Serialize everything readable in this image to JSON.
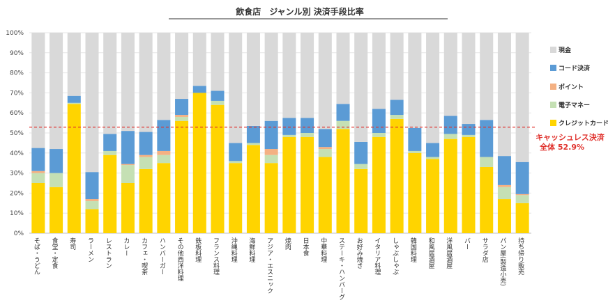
{
  "chart_data": {
    "type": "bar",
    "stacked": true,
    "title": "飲食店　ジャンル別 決済手段比率",
    "xlabel": "",
    "ylabel": "",
    "ylim": [
      0,
      100
    ],
    "yticks": [
      "0%",
      "10%",
      "20%",
      "30%",
      "40%",
      "50%",
      "60%",
      "70%",
      "80%",
      "90%",
      "100%"
    ],
    "legend_position": "right",
    "categories": [
      "そば・うどん",
      "食堂・定食",
      "寿司",
      "ラーメン",
      "レストラン",
      "カレー",
      "カフェ・喫茶",
      "ハンバーガー",
      "その他西洋料理",
      "鉄板料理",
      "フランス料理",
      "沖縄料理",
      "海鮮料理",
      "アジア・エスニック",
      "焼肉",
      "日本食",
      "中華料理",
      "ステーキ・ハンバーグ",
      "お好み焼き",
      "イタリア料理",
      "しゃぶしゃぶ",
      "韓国料理",
      "和風居酒屋",
      "洋風居酒屋",
      "バー",
      "サラダ店",
      "パン屋(製造小売)",
      "持ち帰り販売"
    ],
    "series": [
      {
        "name": "クレジットカード",
        "color": "#ffd400",
        "values": [
          25,
          23,
          64.5,
          12,
          39,
          25,
          32,
          35,
          56,
          70,
          64,
          35,
          44,
          35,
          48,
          48,
          38,
          52,
          32,
          48,
          57,
          40,
          37,
          47,
          48,
          33,
          17,
          15
        ]
      },
      {
        "name": "電子マネー",
        "color": "#c5e0b4",
        "values": [
          5,
          7,
          0.5,
          4,
          2,
          9,
          6,
          4,
          2,
          0,
          2,
          1,
          1,
          4,
          1,
          2,
          4,
          4,
          2.5,
          2,
          2,
          1,
          1,
          2.5,
          1,
          5,
          6,
          4
        ]
      },
      {
        "name": "ポイント",
        "color": "#f4b183",
        "values": [
          1,
          0,
          0,
          1,
          0,
          0.5,
          1,
          2,
          1,
          0,
          0,
          0,
          0,
          3,
          0,
          0,
          1,
          0,
          0,
          0,
          0,
          0,
          0,
          0,
          0,
          0,
          1,
          0.5
        ]
      },
      {
        "name": "コード決済",
        "color": "#5b9bd5",
        "values": [
          11.5,
          12,
          3.5,
          13.5,
          8.5,
          16.5,
          11.5,
          15.5,
          8,
          3.5,
          5,
          9,
          8.5,
          14,
          8.5,
          7.5,
          9,
          8.5,
          11,
          12,
          7.5,
          11.5,
          7,
          9,
          5.5,
          18.5,
          14.5,
          16
        ]
      },
      {
        "name": "現金",
        "color": "#d9d9d9",
        "values": [
          57.5,
          58,
          31.5,
          69.5,
          50.5,
          49,
          49.5,
          43.5,
          33,
          26.5,
          29,
          55,
          46.5,
          44,
          42.5,
          42.5,
          48,
          35.5,
          54.5,
          38,
          33.5,
          47.5,
          55,
          41.5,
          45.5,
          43.5,
          61.5,
          64.5
        ]
      }
    ],
    "legend_order": [
      "現金",
      "コード決済",
      "ポイント",
      "電子マネー",
      "クレジットカード"
    ],
    "reference_line": {
      "value": 52.9,
      "color": "#e0322d",
      "style": "dashed",
      "label_line1": "キャッシュレス決済",
      "label_line2": "全体 52.9%"
    }
  }
}
